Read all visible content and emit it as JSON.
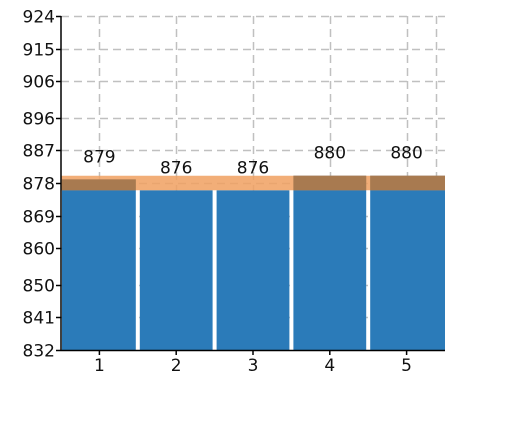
{
  "chart_data": {
    "type": "bar",
    "categories": [
      "1",
      "2",
      "3",
      "4",
      "5"
    ],
    "values": [
      879,
      876,
      876,
      880,
      880
    ],
    "data_labels": [
      "879",
      "876",
      "876",
      "880",
      "880"
    ],
    "y_ticks": [
      "832",
      "841",
      "850",
      "860",
      "869",
      "878",
      "887",
      "896",
      "906",
      "915",
      "924"
    ],
    "ylim": [
      832,
      924
    ],
    "reference_band": {
      "from": 876,
      "to": 880
    },
    "grid": true,
    "title": "",
    "xlabel": "",
    "ylabel": "",
    "colors": {
      "bar": "#2b7bb9",
      "band": "#f0a060",
      "overlap": "#a87a50",
      "grid": "#c0c0c0",
      "axis": "#000000"
    }
  }
}
